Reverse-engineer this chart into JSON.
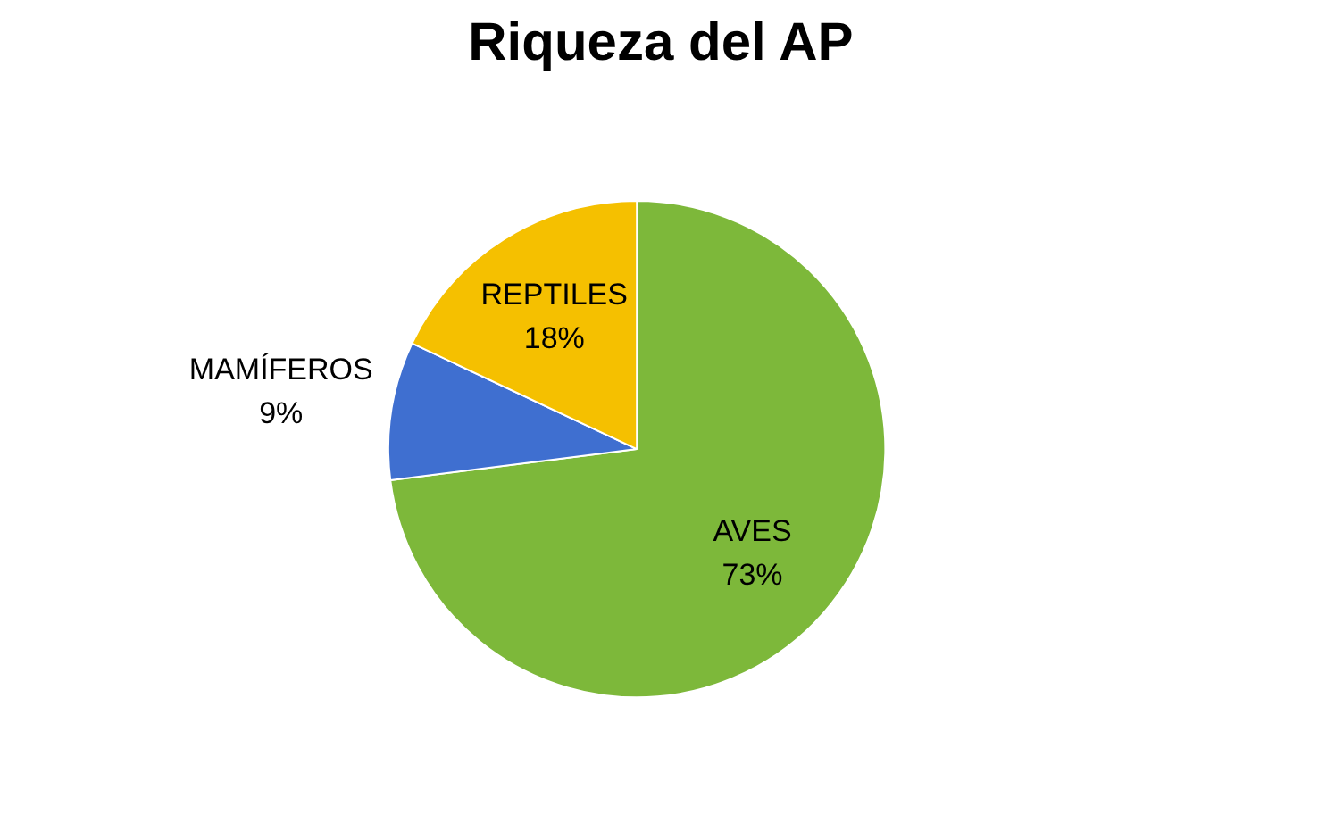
{
  "chart_data": {
    "type": "pie",
    "title": "Riqueza del AP",
    "categories": [
      "AVES",
      "MAMÍFEROS",
      "REPTILES"
    ],
    "values": [
      73,
      9,
      18
    ],
    "colors": [
      "#7db83a",
      "#3f6fd0",
      "#f5c000"
    ],
    "value_labels": [
      "73%",
      "9%",
      "18%"
    ]
  }
}
